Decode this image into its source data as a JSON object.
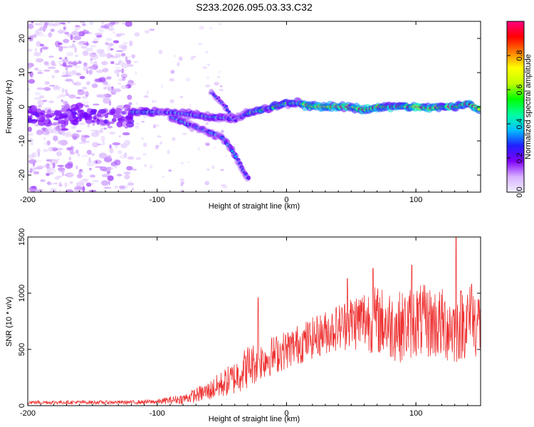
{
  "title": "S233.2026.095.03.33.C32",
  "chart_data": [
    {
      "type": "heatmap",
      "name": "spectrogram",
      "xlabel": "Height of straight line (km)",
      "ylabel": "Frequency (Hz)",
      "xlim": [
        -200,
        150
      ],
      "ylim": [
        -25,
        25
      ],
      "xticks": [
        -200,
        -100,
        0,
        100
      ],
      "yticks": [
        -20,
        -10,
        0,
        10,
        20
      ],
      "colorbar": {
        "label": "Normalized spectral amplitude",
        "range": [
          0,
          1
        ],
        "ticks": [
          0.0,
          0.2,
          0.4,
          0.6,
          0.8
        ],
        "tick_labels": [
          "0.0",
          "0.2",
          "0.4",
          "0.6",
          "0.8"
        ],
        "colors": [
          "#f0f0ff",
          "#d8b0ff",
          "#8000ff",
          "#2020ff",
          "#00c0ff",
          "#00ffa0",
          "#00ff00",
          "#c0ff00",
          "#ffff00",
          "#ff8000",
          "#ff0000",
          "#ff0080"
        ]
      },
      "features": [
        {
          "name": "noise-region",
          "x_range": [
            -200,
            -120
          ],
          "y_range": [
            -25,
            25
          ],
          "amplitude": 0.1
        },
        {
          "name": "main-trace",
          "points": [
            [
              -120,
              -1.5
            ],
            [
              -100,
              -1.5
            ],
            [
              -80,
              -2
            ],
            [
              -60,
              -3
            ],
            [
              -40,
              -3.5
            ],
            [
              -30,
              -2
            ],
            [
              -20,
              -1
            ],
            [
              -10,
              0
            ],
            [
              0,
              1
            ],
            [
              10,
              1
            ],
            [
              20,
              0
            ],
            [
              40,
              0
            ],
            [
              50,
              0
            ],
            [
              60,
              -1
            ],
            [
              70,
              0
            ],
            [
              80,
              0
            ],
            [
              100,
              0
            ],
            [
              110,
              -0.5
            ],
            [
              120,
              0
            ],
            [
              130,
              0
            ],
            [
              140,
              1
            ],
            [
              150,
              -1
            ]
          ]
        },
        {
          "name": "descending-branch",
          "points": [
            [
              -90,
              -3
            ],
            [
              -70,
              -6
            ],
            [
              -50,
              -9
            ],
            [
              -40,
              -14
            ],
            [
              -35,
              -18
            ],
            [
              -30,
              -21
            ]
          ]
        },
        {
          "name": "upper-branch",
          "points": [
            [
              -58,
              4
            ],
            [
              -50,
              1
            ],
            [
              -40,
              -4
            ]
          ]
        }
      ]
    },
    {
      "type": "line",
      "name": "snr",
      "xlabel": "Height of straight line (km)",
      "ylabel": "SNR (10 * v/v)",
      "xlim": [
        -200,
        150
      ],
      "ylim": [
        0,
        1500
      ],
      "xticks": [
        -200,
        -100,
        0,
        100
      ],
      "yticks": [
        0,
        500,
        1000,
        1500
      ],
      "color": "#ee3333",
      "envelope": {
        "x": [
          -200,
          -160,
          -120,
          -100,
          -80,
          -60,
          -40,
          -30,
          -20,
          0,
          20,
          40,
          50,
          60,
          70,
          80,
          90,
          100,
          110,
          120,
          130,
          140,
          150
        ],
        "mean": [
          30,
          30,
          30,
          35,
          60,
          130,
          250,
          350,
          400,
          500,
          600,
          700,
          740,
          770,
          760,
          720,
          700,
          760,
          740,
          720,
          700,
          760,
          740
        ],
        "spread": [
          15,
          15,
          15,
          20,
          40,
          80,
          140,
          180,
          160,
          160,
          170,
          190,
          230,
          260,
          280,
          290,
          290,
          300,
          300,
          300,
          310,
          300,
          300
        ]
      },
      "spikes": [
        [
          -22,
          960
        ],
        [
          47,
          1130
        ],
        [
          67,
          1220
        ],
        [
          97,
          1250
        ],
        [
          131,
          1530
        ],
        [
          143,
          1080
        ]
      ]
    }
  ]
}
